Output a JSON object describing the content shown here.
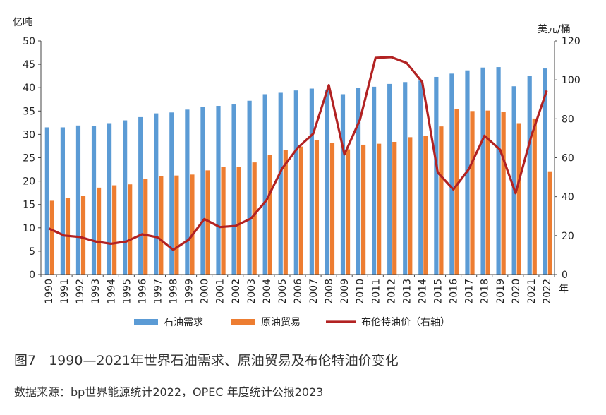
{
  "caption": {
    "figure_no": "图7",
    "title": "1990—2021年世界石油需求、原油贸易及布伦特油价变化"
  },
  "source": "数据来源：bp世界能源统计2022，OPEC 年度统计公报2023",
  "chart_data": {
    "type": "bar",
    "categories": [
      "1990",
      "1991",
      "1992",
      "1993",
      "1994",
      "1995",
      "1996",
      "1997",
      "1998",
      "1999",
      "2000",
      "2001",
      "2002",
      "2003",
      "2004",
      "2005",
      "2006",
      "2007",
      "2008",
      "2009",
      "2010",
      "2011",
      "2012",
      "2013",
      "2014",
      "2015",
      "2016",
      "2017",
      "2018",
      "2019",
      "2020",
      "2021",
      "2022"
    ],
    "xlabel": "年",
    "ylabel_left": "亿吨",
    "ylabel_right": "美元/桶",
    "ylim_left": [
      0,
      50
    ],
    "yticks_left": [
      0,
      5,
      10,
      15,
      20,
      25,
      30,
      35,
      40,
      45,
      50
    ],
    "ylim_right": [
      0,
      120
    ],
    "yticks_right": [
      0,
      20,
      40,
      60,
      80,
      100,
      120
    ],
    "grid": false,
    "legend_position": "bottom",
    "series": [
      {
        "name": "石油需求",
        "type": "bar",
        "axis": "left",
        "color": "#5b9bd5",
        "values": [
          31.5,
          31.5,
          31.9,
          31.8,
          32.4,
          33.0,
          33.7,
          34.5,
          34.7,
          35.3,
          35.8,
          36.1,
          36.4,
          37.2,
          38.6,
          38.9,
          39.4,
          39.8,
          39.5,
          38.6,
          39.9,
          40.2,
          40.8,
          41.2,
          41.5,
          42.3,
          43.0,
          43.7,
          44.3,
          44.4,
          40.3,
          42.5,
          44.1
        ]
      },
      {
        "name": "原油贸易",
        "type": "bar",
        "axis": "left",
        "color": "#ed7d31",
        "values": [
          15.8,
          16.4,
          16.9,
          18.6,
          19.1,
          19.3,
          20.4,
          21.0,
          21.2,
          21.4,
          22.3,
          23.1,
          23.0,
          24.0,
          25.6,
          26.6,
          27.4,
          28.7,
          28.2,
          26.8,
          27.8,
          28.0,
          28.4,
          29.4,
          29.7,
          31.7,
          35.5,
          35.0,
          35.1,
          34.8,
          32.4,
          33.4,
          22.1
        ]
      },
      {
        "name": "布伦特油价（右轴）",
        "type": "line",
        "axis": "right",
        "color": "#b22222",
        "values": [
          23.7,
          20.0,
          19.3,
          17.0,
          15.8,
          17.0,
          20.7,
          19.1,
          12.7,
          17.9,
          28.5,
          24.4,
          25.0,
          28.8,
          38.3,
          54.5,
          65.1,
          72.4,
          97.3,
          61.7,
          79.5,
          111.3,
          111.7,
          108.7,
          98.9,
          52.4,
          43.7,
          54.2,
          71.3,
          64.2,
          41.8,
          70.9,
          94.5
        ]
      }
    ]
  }
}
